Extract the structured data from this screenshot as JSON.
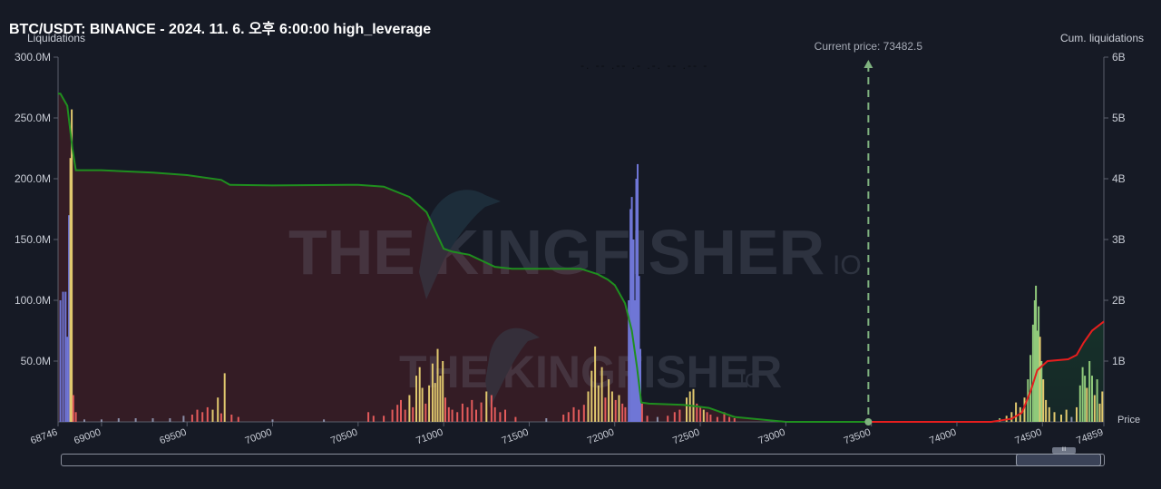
{
  "header": {
    "title": "BTC/USDT: BINANCE - 2024. 11. 6. 오후 6:00:00 high_leverage"
  },
  "watermark": {
    "text": "THE KINGFISHER",
    "suffix": "IO"
  },
  "current_price": {
    "label": "Current price: 73482.5",
    "value": 73482.5
  },
  "scrollbar": {
    "grip_label": "III",
    "window_start": 0.912,
    "window_end": 0.994
  },
  "colors": {
    "background": "#161a25",
    "short_region": "#361c25",
    "long_region": "#142a22",
    "cum_left_line": "#1f8f1f",
    "cum_right_line": "#e61e1e",
    "current_price_line": "#7fb27f",
    "bar_red": "#e35b5b",
    "bar_yellow": "#e0c86e",
    "bar_blue": "#6f76d6",
    "bar_green": "#8fc97a",
    "bar_gray": "#8a8fa8"
  },
  "chart_data": {
    "type": "bar",
    "title": "BTC/USDT: BINANCE - 2024. 11. 6. 오후 6:00:00 high_leverage",
    "xlabel": "Price",
    "ylabel": "Liquidations",
    "y2label": "Cum. liquidations",
    "xlim": [
      68746,
      74859
    ],
    "ylim": [
      0,
      300000000
    ],
    "y2lim": [
      0,
      6000000000
    ],
    "x_ticks": [
      "68746",
      "69000",
      "69500",
      "70000",
      "70500",
      "71000",
      "71500",
      "72000",
      "72500",
      "73000",
      "73500",
      "74000",
      "74500",
      "74859"
    ],
    "x_tick_values": [
      68746,
      69000,
      69500,
      70000,
      70500,
      71000,
      71500,
      72000,
      72500,
      73000,
      73500,
      74000,
      74500,
      74859
    ],
    "y_ticks": [
      "300.0M",
      "250.0M",
      "200.0M",
      "150.0M",
      "100.0M",
      "50.0M"
    ],
    "y_tick_values": [
      300000000,
      250000000,
      200000000,
      150000000,
      100000000,
      50000000
    ],
    "y2_ticks": [
      "6B",
      "5B",
      "4B",
      "3B",
      "2B",
      "1B"
    ],
    "y2_tick_values": [
      6000000000,
      5000000000,
      4000000000,
      3000000000,
      2000000000,
      1000000000
    ],
    "bars": [
      {
        "x": 68760,
        "v": 100000000,
        "c": "blue"
      },
      {
        "x": 68775,
        "v": 107000000,
        "c": "blue"
      },
      {
        "x": 68790,
        "v": 107000000,
        "c": "blue"
      },
      {
        "x": 68800,
        "v": 70000000,
        "c": "blue"
      },
      {
        "x": 68810,
        "v": 170000000,
        "c": "blue"
      },
      {
        "x": 68818,
        "v": 217000000,
        "c": "yellow"
      },
      {
        "x": 68826,
        "v": 257000000,
        "c": "yellow"
      },
      {
        "x": 68835,
        "v": 22000000,
        "c": "red"
      },
      {
        "x": 68850,
        "v": 8000000,
        "c": "red"
      },
      {
        "x": 68900,
        "v": 2000000,
        "c": "gray"
      },
      {
        "x": 69000,
        "v": 2000000,
        "c": "gray"
      },
      {
        "x": 69100,
        "v": 3000000,
        "c": "gray"
      },
      {
        "x": 69200,
        "v": 3000000,
        "c": "gray"
      },
      {
        "x": 69300,
        "v": 3000000,
        "c": "gray"
      },
      {
        "x": 69400,
        "v": 3000000,
        "c": "gray"
      },
      {
        "x": 69480,
        "v": 5000000,
        "c": "gray"
      },
      {
        "x": 69530,
        "v": 6000000,
        "c": "red"
      },
      {
        "x": 69560,
        "v": 10000000,
        "c": "red"
      },
      {
        "x": 69590,
        "v": 8000000,
        "c": "red"
      },
      {
        "x": 69620,
        "v": 12000000,
        "c": "red"
      },
      {
        "x": 69650,
        "v": 10000000,
        "c": "yellow"
      },
      {
        "x": 69680,
        "v": 20000000,
        "c": "yellow"
      },
      {
        "x": 69700,
        "v": 7000000,
        "c": "red"
      },
      {
        "x": 69720,
        "v": 40000000,
        "c": "yellow"
      },
      {
        "x": 69760,
        "v": 6000000,
        "c": "red"
      },
      {
        "x": 69800,
        "v": 4000000,
        "c": "red"
      },
      {
        "x": 70000,
        "v": 2000000,
        "c": "gray"
      },
      {
        "x": 70300,
        "v": 2000000,
        "c": "gray"
      },
      {
        "x": 70560,
        "v": 8000000,
        "c": "red"
      },
      {
        "x": 70590,
        "v": 5000000,
        "c": "red"
      },
      {
        "x": 70650,
        "v": 5000000,
        "c": "red"
      },
      {
        "x": 70700,
        "v": 10000000,
        "c": "red"
      },
      {
        "x": 70730,
        "v": 14000000,
        "c": "red"
      },
      {
        "x": 70750,
        "v": 18000000,
        "c": "red"
      },
      {
        "x": 70775,
        "v": 10000000,
        "c": "red"
      },
      {
        "x": 70800,
        "v": 22000000,
        "c": "yellow"
      },
      {
        "x": 70820,
        "v": 12000000,
        "c": "red"
      },
      {
        "x": 70840,
        "v": 38000000,
        "c": "yellow"
      },
      {
        "x": 70860,
        "v": 45000000,
        "c": "yellow"
      },
      {
        "x": 70875,
        "v": 28000000,
        "c": "yellow"
      },
      {
        "x": 70895,
        "v": 15000000,
        "c": "red"
      },
      {
        "x": 70915,
        "v": 30000000,
        "c": "yellow"
      },
      {
        "x": 70935,
        "v": 48000000,
        "c": "yellow"
      },
      {
        "x": 70950,
        "v": 32000000,
        "c": "yellow"
      },
      {
        "x": 70965,
        "v": 60000000,
        "c": "yellow"
      },
      {
        "x": 70980,
        "v": 38000000,
        "c": "yellow"
      },
      {
        "x": 70995,
        "v": 50000000,
        "c": "yellow"
      },
      {
        "x": 71010,
        "v": 20000000,
        "c": "red"
      },
      {
        "x": 71030,
        "v": 12000000,
        "c": "red"
      },
      {
        "x": 71050,
        "v": 10000000,
        "c": "red"
      },
      {
        "x": 71080,
        "v": 8000000,
        "c": "red"
      },
      {
        "x": 71110,
        "v": 15000000,
        "c": "red"
      },
      {
        "x": 71140,
        "v": 12000000,
        "c": "red"
      },
      {
        "x": 71165,
        "v": 18000000,
        "c": "red"
      },
      {
        "x": 71190,
        "v": 10000000,
        "c": "red"
      },
      {
        "x": 71220,
        "v": 16000000,
        "c": "red"
      },
      {
        "x": 71250,
        "v": 25000000,
        "c": "yellow"
      },
      {
        "x": 71280,
        "v": 22000000,
        "c": "red"
      },
      {
        "x": 71300,
        "v": 12000000,
        "c": "red"
      },
      {
        "x": 71330,
        "v": 8000000,
        "c": "red"
      },
      {
        "x": 71360,
        "v": 10000000,
        "c": "red"
      },
      {
        "x": 71420,
        "v": 4000000,
        "c": "red"
      },
      {
        "x": 71600,
        "v": 3000000,
        "c": "gray"
      },
      {
        "x": 71700,
        "v": 6000000,
        "c": "red"
      },
      {
        "x": 71730,
        "v": 8000000,
        "c": "red"
      },
      {
        "x": 71760,
        "v": 12000000,
        "c": "red"
      },
      {
        "x": 71790,
        "v": 10000000,
        "c": "red"
      },
      {
        "x": 71820,
        "v": 14000000,
        "c": "red"
      },
      {
        "x": 71845,
        "v": 25000000,
        "c": "yellow"
      },
      {
        "x": 71865,
        "v": 42000000,
        "c": "yellow"
      },
      {
        "x": 71885,
        "v": 62000000,
        "c": "yellow"
      },
      {
        "x": 71905,
        "v": 30000000,
        "c": "yellow"
      },
      {
        "x": 71925,
        "v": 45000000,
        "c": "yellow"
      },
      {
        "x": 71945,
        "v": 20000000,
        "c": "red"
      },
      {
        "x": 71965,
        "v": 35000000,
        "c": "yellow"
      },
      {
        "x": 71985,
        "v": 25000000,
        "c": "yellow"
      },
      {
        "x": 72005,
        "v": 18000000,
        "c": "red"
      },
      {
        "x": 72025,
        "v": 22000000,
        "c": "yellow"
      },
      {
        "x": 72045,
        "v": 15000000,
        "c": "red"
      },
      {
        "x": 72062,
        "v": 12000000,
        "c": "red"
      },
      {
        "x": 72082,
        "v": 100000000,
        "c": "blue"
      },
      {
        "x": 72092,
        "v": 175000000,
        "c": "blue"
      },
      {
        "x": 72100,
        "v": 185000000,
        "c": "blue"
      },
      {
        "x": 72110,
        "v": 150000000,
        "c": "blue"
      },
      {
        "x": 72118,
        "v": 100000000,
        "c": "blue"
      },
      {
        "x": 72126,
        "v": 200000000,
        "c": "blue"
      },
      {
        "x": 72134,
        "v": 212000000,
        "c": "blue"
      },
      {
        "x": 72142,
        "v": 120000000,
        "c": "blue"
      },
      {
        "x": 72150,
        "v": 60000000,
        "c": "blue"
      },
      {
        "x": 72160,
        "v": 15000000,
        "c": "red"
      },
      {
        "x": 72190,
        "v": 5000000,
        "c": "red"
      },
      {
        "x": 72250,
        "v": 4000000,
        "c": "gray"
      },
      {
        "x": 72310,
        "v": 5000000,
        "c": "red"
      },
      {
        "x": 72350,
        "v": 8000000,
        "c": "red"
      },
      {
        "x": 72380,
        "v": 10000000,
        "c": "red"
      },
      {
        "x": 72420,
        "v": 20000000,
        "c": "yellow"
      },
      {
        "x": 72440,
        "v": 25000000,
        "c": "yellow"
      },
      {
        "x": 72460,
        "v": 27000000,
        "c": "yellow"
      },
      {
        "x": 72480,
        "v": 15000000,
        "c": "red"
      },
      {
        "x": 72500,
        "v": 12000000,
        "c": "red"
      },
      {
        "x": 72520,
        "v": 10000000,
        "c": "yellow"
      },
      {
        "x": 72540,
        "v": 8000000,
        "c": "red"
      },
      {
        "x": 72560,
        "v": 6000000,
        "c": "red"
      },
      {
        "x": 72600,
        "v": 4000000,
        "c": "red"
      },
      {
        "x": 72640,
        "v": 8000000,
        "c": "red"
      },
      {
        "x": 72670,
        "v": 4000000,
        "c": "red"
      },
      {
        "x": 72700,
        "v": 3000000,
        "c": "red"
      },
      {
        "x": 74250,
        "v": 3000000,
        "c": "green"
      },
      {
        "x": 74290,
        "v": 5000000,
        "c": "yellow"
      },
      {
        "x": 74320,
        "v": 8000000,
        "c": "yellow"
      },
      {
        "x": 74345,
        "v": 16000000,
        "c": "yellow"
      },
      {
        "x": 74370,
        "v": 12000000,
        "c": "yellow"
      },
      {
        "x": 74395,
        "v": 20000000,
        "c": "yellow"
      },
      {
        "x": 74415,
        "v": 35000000,
        "c": "green"
      },
      {
        "x": 74430,
        "v": 55000000,
        "c": "green"
      },
      {
        "x": 74445,
        "v": 80000000,
        "c": "green"
      },
      {
        "x": 74455,
        "v": 100000000,
        "c": "green"
      },
      {
        "x": 74462,
        "v": 112000000,
        "c": "green"
      },
      {
        "x": 74470,
        "v": 75000000,
        "c": "green"
      },
      {
        "x": 74478,
        "v": 95000000,
        "c": "green"
      },
      {
        "x": 74486,
        "v": 70000000,
        "c": "yellow"
      },
      {
        "x": 74495,
        "v": 50000000,
        "c": "green"
      },
      {
        "x": 74505,
        "v": 35000000,
        "c": "yellow"
      },
      {
        "x": 74520,
        "v": 18000000,
        "c": "yellow"
      },
      {
        "x": 74540,
        "v": 12000000,
        "c": "yellow"
      },
      {
        "x": 74570,
        "v": 8000000,
        "c": "yellow"
      },
      {
        "x": 74610,
        "v": 6000000,
        "c": "yellow"
      },
      {
        "x": 74640,
        "v": 10000000,
        "c": "yellow"
      },
      {
        "x": 74670,
        "v": 4000000,
        "c": "gray"
      },
      {
        "x": 74700,
        "v": 12000000,
        "c": "yellow"
      },
      {
        "x": 74720,
        "v": 30000000,
        "c": "green"
      },
      {
        "x": 74735,
        "v": 45000000,
        "c": "green"
      },
      {
        "x": 74748,
        "v": 38000000,
        "c": "green"
      },
      {
        "x": 74760,
        "v": 28000000,
        "c": "yellow"
      },
      {
        "x": 74775,
        "v": 50000000,
        "c": "green"
      },
      {
        "x": 74790,
        "v": 38000000,
        "c": "green"
      },
      {
        "x": 74805,
        "v": 22000000,
        "c": "yellow"
      },
      {
        "x": 74820,
        "v": 35000000,
        "c": "green"
      },
      {
        "x": 74835,
        "v": 15000000,
        "c": "yellow"
      },
      {
        "x": 74850,
        "v": 25000000,
        "c": "yellow"
      }
    ],
    "cum_short": [
      [
        68746,
        5400000000
      ],
      [
        68760,
        5400000000
      ],
      [
        68800,
        5200000000
      ],
      [
        68830,
        4500000000
      ],
      [
        68850,
        4140000000
      ],
      [
        69000,
        4140000000
      ],
      [
        69300,
        4100000000
      ],
      [
        69500,
        4060000000
      ],
      [
        69700,
        3980000000
      ],
      [
        69750,
        3900000000
      ],
      [
        70000,
        3890000000
      ],
      [
        70500,
        3900000000
      ],
      [
        70650,
        3870000000
      ],
      [
        70800,
        3700000000
      ],
      [
        70900,
        3450000000
      ],
      [
        70950,
        3150000000
      ],
      [
        71000,
        2850000000
      ],
      [
        71050,
        2800000000
      ],
      [
        71150,
        2750000000
      ],
      [
        71300,
        2550000000
      ],
      [
        71400,
        2520000000
      ],
      [
        71800,
        2520000000
      ],
      [
        71900,
        2430000000
      ],
      [
        71960,
        2340000000
      ],
      [
        72000,
        2250000000
      ],
      [
        72060,
        1950000000
      ],
      [
        72100,
        1500000000
      ],
      [
        72130,
        900000000
      ],
      [
        72155,
        320000000
      ],
      [
        72200,
        300000000
      ],
      [
        72400,
        280000000
      ],
      [
        72550,
        230000000
      ],
      [
        72700,
        80000000
      ],
      [
        73000,
        0
      ],
      [
        73482.5,
        0
      ]
    ],
    "cum_long": [
      [
        73482.5,
        0
      ],
      [
        74000,
        0
      ],
      [
        74200,
        0
      ],
      [
        74320,
        50000000
      ],
      [
        74380,
        150000000
      ],
      [
        74430,
        500000000
      ],
      [
        74470,
        850000000
      ],
      [
        74530,
        1000000000
      ],
      [
        74650,
        1030000000
      ],
      [
        74700,
        1100000000
      ],
      [
        74740,
        1300000000
      ],
      [
        74790,
        1500000000
      ],
      [
        74859,
        1650000000
      ]
    ]
  }
}
